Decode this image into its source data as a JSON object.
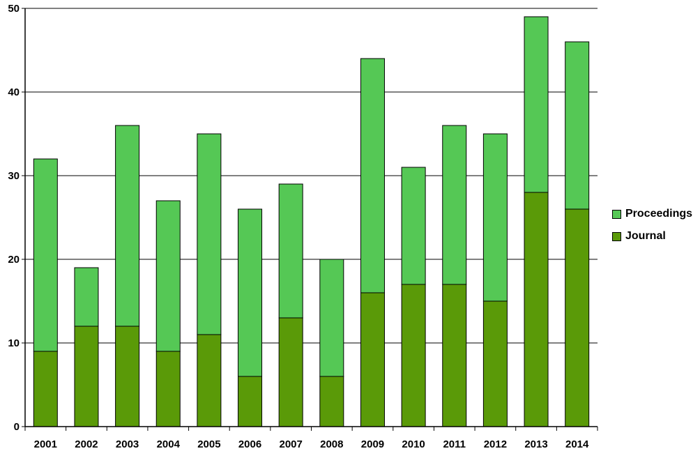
{
  "chart_data": {
    "type": "bar",
    "stacked": true,
    "categories": [
      "2001",
      "2002",
      "2003",
      "2004",
      "2005",
      "2006",
      "2007",
      "2008",
      "2009",
      "2010",
      "2011",
      "2012",
      "2013",
      "2014"
    ],
    "series": [
      {
        "name": "Journal",
        "color": "#5a9a08",
        "values": [
          9,
          12,
          12,
          9,
          11,
          6,
          13,
          6,
          16,
          17,
          17,
          15,
          28,
          26
        ]
      },
      {
        "name": "Proceedings",
        "color": "#55c855",
        "values": [
          23,
          7,
          24,
          18,
          24,
          20,
          16,
          14,
          28,
          14,
          19,
          20,
          21,
          20
        ]
      }
    ],
    "totals": [
      32,
      19,
      36,
      27,
      35,
      26,
      29,
      20,
      44,
      31,
      36,
      35,
      49,
      46
    ],
    "yticks": [
      "0",
      "10",
      "20",
      "30",
      "40",
      "50"
    ],
    "ylim": [
      0,
      50
    ],
    "title": "",
    "xlabel": "",
    "ylabel": "",
    "grid": true,
    "legend_position": "right",
    "legend_order": [
      "Proceedings",
      "Journal"
    ]
  }
}
